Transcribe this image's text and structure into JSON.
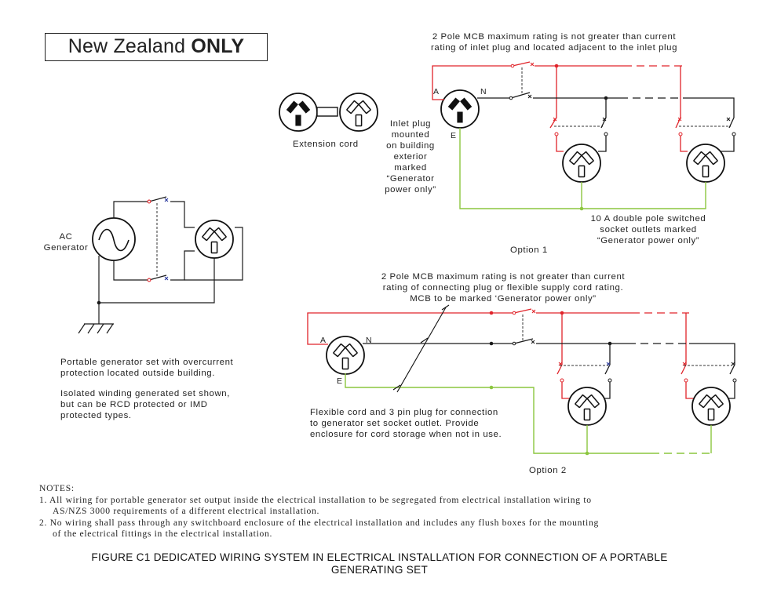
{
  "header": {
    "nz_prefix": "New Zealand",
    "nz_bold": "ONLY"
  },
  "labels": {
    "mcb_top": [
      "2 Pole MCB maximum rating is not greater than current",
      "rating of inlet plug and located adjacent to the inlet plug"
    ],
    "extension_cord": "Extension cord",
    "inlet_plug": [
      "Inlet plug",
      "mounted",
      "on building",
      "exterior",
      "marked",
      "“Generator",
      "power only”"
    ],
    "outlets_10a": [
      "10 A double pole switched",
      "socket outlets marked",
      "“Generator power only”"
    ],
    "option1": "Option 1",
    "ac_generator": [
      "AC",
      "Generator"
    ],
    "mcb_bottom": [
      "2 Pole MCB maximum rating is not greater than current",
      "rating of connecting plug or flexible supply cord rating.",
      "MCB to be marked ‘Generator power only”"
    ],
    "portable_note_1": [
      "Portable generator set with overcurrent",
      "protection located outside building."
    ],
    "portable_note_2": [
      "Isolated winding generated set shown,",
      "but can be RCD protected or IMD",
      "protected types."
    ],
    "flexible_cord": [
      "Flexible cord and 3 pin plug for connection",
      "to generator set socket outlet. Provide",
      "enclosure for cord storage when not in use."
    ],
    "option2": "Option 2",
    "terminal_a": "A",
    "terminal_n": "N",
    "terminal_e": "E"
  },
  "notes": {
    "heading": "NOTES:",
    "note1": "1. All wiring for portable generator set output inside the electrical installation to be segregated from electrical installation wiring to",
    "note1_cont": "AS/NZS 3000 requirements of a different electrical installation.",
    "note2": "2. No wiring shall pass through any switchboard enclosure of the electrical installation and includes any flush boxes for the mounting",
    "note2_cont": "of the electrical fittings in the electrical installation."
  },
  "caption": [
    "FIGURE  C1   DEDICATED WIRING SYSTEM IN ELECTRICAL INSTALLATION FOR CONNECTION OF A PORTABLE",
    "GENERATING SET"
  ],
  "colors": {
    "active_wire": "#e0242a",
    "neutral_wire": "#1a1a1a",
    "earth_wire": "#8cc63f",
    "switch_x": "#2b3a9e",
    "text": "#222222"
  }
}
